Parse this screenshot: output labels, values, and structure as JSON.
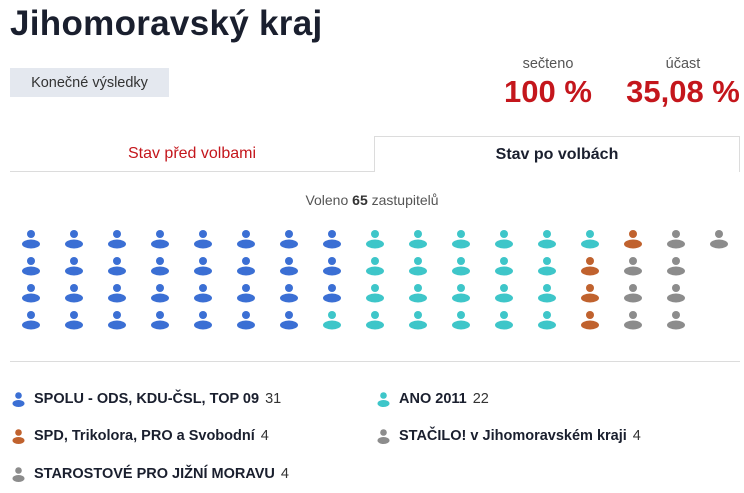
{
  "header": {
    "title": "Jihomoravský kraj",
    "badge": "Konečné výsledky"
  },
  "stats": {
    "counted_label": "sečteno",
    "counted_value": "100 %",
    "turnout_label": "účast",
    "turnout_value": "35,08 %"
  },
  "tabs": {
    "before": "Stav před volbami",
    "after": "Stav po volbách"
  },
  "elected": {
    "prefix": "Voleno",
    "count": "65",
    "suffix": "zastupitelů"
  },
  "colors": {
    "spolu": "#3b6fd4",
    "ano": "#3ec6c9",
    "spd": "#c0622e",
    "stacilo": "#8c8c8c",
    "starostove": "#8c8c8c"
  },
  "parties": [
    {
      "key": "spolu",
      "name": "SPOLU - ODS, KDU-ČSL, TOP 09",
      "seats": 31,
      "icon": "person-icon"
    },
    {
      "key": "ano",
      "name": "ANO 2011",
      "seats": 22,
      "icon": "person-icon"
    },
    {
      "key": "spd",
      "name": "SPD, Trikolora, PRO a Svobodní",
      "seats": 4,
      "icon": "person-icon"
    },
    {
      "key": "stacilo",
      "name": "STAČILO! v Jihomoravském kraji",
      "seats": 4,
      "icon": "person-icon"
    },
    {
      "key": "starostove",
      "name": "STAROSTOVÉ PRO JIŽNÍ MORAVU",
      "seats": 4,
      "icon": "person-icon"
    }
  ]
}
